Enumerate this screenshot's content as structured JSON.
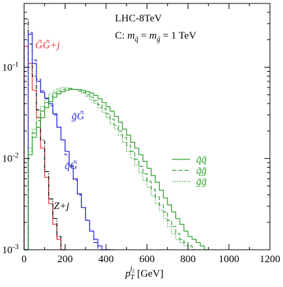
{
  "chart_data": {
    "type": "line",
    "title": "",
    "annotations": {
      "energy": "LHC-8TeV",
      "scenario_prefix": "C: ",
      "scenario_msq": "m",
      "scenario_msq_sub": "q̃",
      "scenario_eq1": " = ",
      "scenario_mgl": "m",
      "scenario_mgl_sub": "g̃",
      "scenario_eq2": " = 1 TeV",
      "label_GG": "G̃G̃+j",
      "label_qG": "q̃G̃",
      "label_gG": "g̃G̃",
      "label_Zj": "Z+j"
    },
    "xlabel": {
      "main": "p",
      "sub": "T",
      "sup": "j",
      "supsub": "2",
      "unit": " [GeV]"
    },
    "xlim": [
      0,
      1200
    ],
    "ylim": [
      0.001,
      0.5
    ],
    "yscale": "log",
    "x_ticks": [
      "0",
      "200",
      "400",
      "600",
      "800",
      "1000",
      "1200"
    ],
    "y_ticks": [
      {
        "base": "10",
        "exp": "-1",
        "value": 0.1
      },
      {
        "base": "10",
        "exp": "-2",
        "value": 0.01
      },
      {
        "base": "10",
        "exp": "-3",
        "value": 0.001
      }
    ],
    "legend": {
      "position": "center-right",
      "entries": [
        {
          "label": "q̃q̃",
          "style": "solid",
          "color": "#2ca02c"
        },
        {
          "label": "q̃g̃",
          "style": "dashed",
          "color": "#2ca02c"
        },
        {
          "label": "g̃g̃",
          "style": "dotted",
          "color": "#2ca02c"
        }
      ]
    },
    "series": [
      {
        "name": "G̃G̃+j",
        "color": "#e8333a",
        "style": "solid",
        "x": [
          0,
          20,
          40,
          60,
          80,
          100,
          120,
          140,
          160,
          180,
          200,
          220
        ],
        "y": [
          0.001,
          0.17,
          0.11,
          0.056,
          0.028,
          0.013,
          0.0062,
          0.0032,
          0.0019,
          0.0013,
          0.001,
          0.001
        ]
      },
      {
        "name": "Z+j",
        "color": "#000000",
        "style": "dashdot",
        "x": [
          20,
          40,
          60,
          80,
          100,
          120,
          140,
          160,
          180,
          200
        ],
        "y": [
          0.34,
          0.18,
          0.08,
          0.034,
          0.016,
          0.0072,
          0.0036,
          0.0022,
          0.0014,
          0.001
        ]
      },
      {
        "name": "q̃G̃",
        "color": "#2b2bd6",
        "style": "solid",
        "x": [
          20,
          40,
          60,
          80,
          100,
          120,
          140,
          160,
          180,
          200,
          220,
          240,
          260,
          280,
          300,
          320,
          340,
          360,
          380,
          400,
          420,
          440
        ],
        "y": [
          0.001,
          0.23,
          0.11,
          0.07,
          0.053,
          0.046,
          0.04,
          0.031,
          0.022,
          0.016,
          0.012,
          0.0084,
          0.006,
          0.0041,
          0.0029,
          0.0021,
          0.0016,
          0.0013,
          0.0011,
          0.001,
          0.001,
          0.001
        ]
      },
      {
        "name": "g̃G̃",
        "color": "#2b2bd6",
        "style": "dashed",
        "x": [
          20,
          40,
          60,
          80,
          100,
          120,
          140,
          160,
          180,
          200,
          220,
          240,
          260,
          280,
          300,
          320,
          340,
          360,
          380,
          400,
          420
        ],
        "y": [
          0.001,
          0.24,
          0.12,
          0.074,
          0.055,
          0.045,
          0.038,
          0.03,
          0.022,
          0.016,
          0.011,
          0.0081,
          0.0058,
          0.004,
          0.0029,
          0.0021,
          0.0016,
          0.0012,
          0.001,
          0.001,
          0.001
        ]
      },
      {
        "name": "q̃q̃",
        "color": "#2ca02c",
        "style": "solid",
        "x": [
          20,
          40,
          60,
          80,
          100,
          120,
          140,
          160,
          180,
          200,
          220,
          240,
          260,
          280,
          300,
          320,
          340,
          360,
          380,
          400,
          420,
          440,
          460,
          480,
          500,
          520,
          540,
          560,
          580,
          600,
          620,
          640,
          660,
          680,
          700,
          720,
          740,
          760,
          780,
          800,
          820,
          840,
          860,
          880,
          900
        ],
        "y": [
          0.001,
          0.011,
          0.017,
          0.022,
          0.028,
          0.036,
          0.042,
          0.047,
          0.051,
          0.054,
          0.056,
          0.057,
          0.057,
          0.057,
          0.056,
          0.054,
          0.052,
          0.049,
          0.045,
          0.041,
          0.037,
          0.033,
          0.029,
          0.025,
          0.021,
          0.018,
          0.015,
          0.013,
          0.011,
          0.0093,
          0.0078,
          0.0065,
          0.0055,
          0.0045,
          0.0037,
          0.0031,
          0.0026,
          0.0022,
          0.0019,
          0.0016,
          0.0014,
          0.0013,
          0.0012,
          0.0011,
          0.001
        ]
      },
      {
        "name": "q̃g̃",
        "color": "#2ca02c",
        "style": "dashed",
        "x": [
          20,
          40,
          60,
          80,
          100,
          120,
          140,
          160,
          180,
          200,
          220,
          240,
          260,
          280,
          300,
          320,
          340,
          360,
          380,
          400,
          420,
          440,
          460,
          480,
          500,
          520,
          540,
          560,
          580,
          600,
          620,
          640,
          660,
          680,
          700,
          720,
          740,
          760,
          780,
          800,
          820,
          840,
          860
        ],
        "y": [
          0.001,
          0.012,
          0.019,
          0.026,
          0.033,
          0.041,
          0.047,
          0.052,
          0.055,
          0.057,
          0.058,
          0.058,
          0.057,
          0.055,
          0.053,
          0.05,
          0.047,
          0.043,
          0.039,
          0.035,
          0.031,
          0.027,
          0.023,
          0.02,
          0.017,
          0.014,
          0.012,
          0.0098,
          0.0082,
          0.0068,
          0.0056,
          0.0046,
          0.0038,
          0.0031,
          0.0026,
          0.0021,
          0.0018,
          0.0015,
          0.0013,
          0.0012,
          0.0011,
          0.001,
          0.001
        ]
      },
      {
        "name": "g̃g̃",
        "color": "#2ca02c",
        "style": "dotted",
        "x": [
          20,
          40,
          60,
          80,
          100,
          120,
          140,
          160,
          180,
          200,
          220,
          240,
          260,
          280,
          300,
          320,
          340,
          360,
          380,
          400,
          420,
          440,
          460,
          480,
          500,
          520,
          540,
          560,
          580,
          600,
          620,
          640,
          660,
          680,
          700,
          720,
          740,
          760,
          780,
          800,
          820,
          840
        ],
        "y": [
          0.001,
          0.013,
          0.021,
          0.029,
          0.037,
          0.045,
          0.051,
          0.055,
          0.058,
          0.06,
          0.06,
          0.059,
          0.057,
          0.055,
          0.052,
          0.048,
          0.044,
          0.04,
          0.036,
          0.032,
          0.028,
          0.024,
          0.021,
          0.018,
          0.015,
          0.012,
          0.01,
          0.0085,
          0.007,
          0.0058,
          0.0048,
          0.0039,
          0.0032,
          0.0027,
          0.0022,
          0.0018,
          0.0015,
          0.0013,
          0.0012,
          0.0011,
          0.001,
          0.001
        ]
      }
    ]
  }
}
